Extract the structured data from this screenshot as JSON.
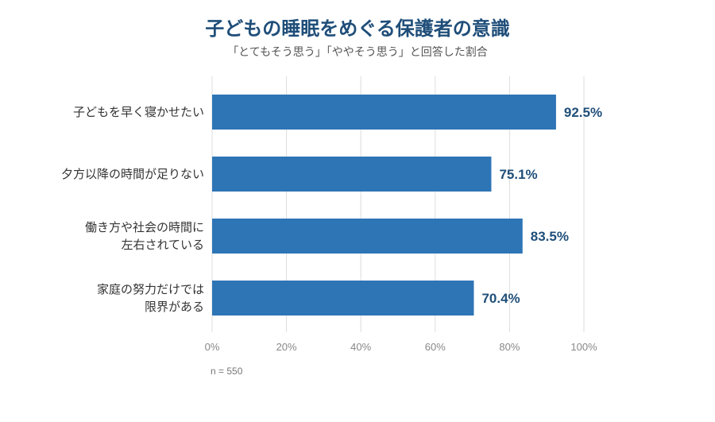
{
  "chart_data": {
    "type": "bar",
    "orientation": "horizontal",
    "title": "子どもの睡眠をめぐる保護者の意識",
    "subtitle": "「とてもそう思う」「ややそう思う」と回答した割合",
    "categories": [
      [
        "子どもを早く寝かせたい"
      ],
      [
        "夕方以降の時間が足りない"
      ],
      [
        "働き方や社会の時間に",
        "左右されている"
      ],
      [
        "家庭の努力だけでは",
        "限界がある"
      ]
    ],
    "values": [
      92.5,
      75.1,
      83.5,
      70.4
    ],
    "value_labels": [
      "92.5%",
      "75.1%",
      "83.5%",
      "70.4%"
    ],
    "xlim": [
      0,
      100
    ],
    "xticks": [
      "0%",
      "20%",
      "40%",
      "60%",
      "80%",
      "100%"
    ],
    "grid": true,
    "note": "n = 550",
    "colors": {
      "bar": "#2e75b6",
      "value_label": "#1f4e79",
      "title": "#1f4e79",
      "grid": "#dddddd"
    }
  }
}
